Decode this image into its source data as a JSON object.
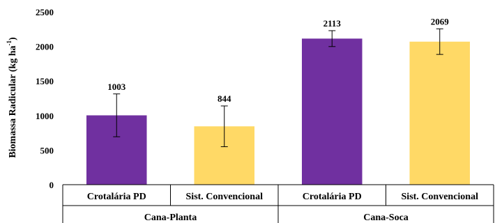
{
  "chart_data": {
    "type": "bar",
    "title": "",
    "ylabel": "Biomassa Radicular (kg ha",
    "ylabel_superscript": "-1",
    "ylabel_suffix": ")",
    "ylim": [
      0,
      2500
    ],
    "yticks": [
      0,
      500,
      1000,
      1500,
      2000,
      2500
    ],
    "ytick_labels": [
      "0",
      "500",
      "1000",
      "1500",
      "2000",
      "2500"
    ],
    "grid": false,
    "legend": "none",
    "groups": [
      {
        "label": "Cana-Planta",
        "bars": [
          {
            "category": "Crotalária PD",
            "value": 1003,
            "value_label": "1003",
            "error": 310,
            "color": "#7030A0"
          },
          {
            "category": "Sist. Convencional",
            "value": 844,
            "value_label": "844",
            "error": 295,
            "color": "#FFD966"
          }
        ]
      },
      {
        "label": "Cana-Soca",
        "bars": [
          {
            "category": "Crotalária PD",
            "value": 2113,
            "value_label": "2113",
            "error": 115,
            "color": "#7030A0"
          },
          {
            "category": "Sist. Convencional",
            "value": 2069,
            "value_label": "2069",
            "error": 185,
            "color": "#FFD966"
          }
        ]
      }
    ]
  }
}
